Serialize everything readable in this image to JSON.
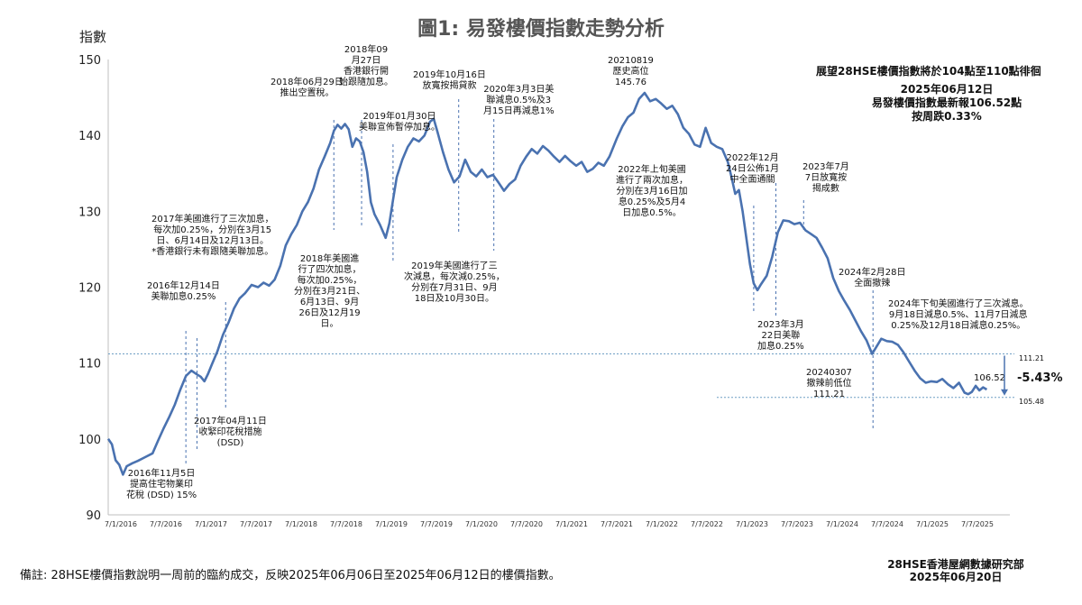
{
  "page": {
    "title": "圖1: 易發樓價指數走勢分析",
    "outlook": "展望28HSE樓價指數將於104點至110點徘徊",
    "latest": "2025年06月12日\n易發樓價指數最新報106.52點\n按周跌0.33%",
    "footer": "備註: 28HSE樓價指數說明一周前的臨約成交，反映2025年06月06日至2025年06月12日的樓價指數。",
    "source": "28HSE香港屋網數據研究部\n2025年06月20日",
    "change_pct": "-5.43%",
    "ref_high_label": "111.21",
    "ref_low_label": "105.48",
    "last_value_label": "106.52"
  },
  "chart_data": {
    "type": "line",
    "title": "圖1: 易發樓價指數走勢分析",
    "xlabel": "",
    "ylabel": "指數",
    "ylim": [
      90,
      150
    ],
    "yticks": [
      90,
      100,
      110,
      120,
      130,
      140,
      150
    ],
    "xticks": [
      "7/1/2016",
      "7/7/2016",
      "7/1/2017",
      "7/7/2017",
      "7/1/2018",
      "7/7/2018",
      "7/1/2019",
      "7/7/2019",
      "7/1/2020",
      "7/7/2020",
      "7/1/2021",
      "7/7/2021",
      "7/1/2022",
      "7/7/2022",
      "7/1/2023",
      "7/7/2023",
      "7/1/2024",
      "7/7/2024",
      "7/1/2025",
      "7/7/2025"
    ],
    "line_color": "#4a72b0",
    "series": [
      {
        "values": [
          [
            2016.0,
            100.0
          ],
          [
            2016.04,
            99.3
          ],
          [
            2016.08,
            97.2
          ],
          [
            2016.12,
            96.6
          ],
          [
            2016.16,
            95.3
          ],
          [
            2016.2,
            96.4
          ],
          [
            2016.26,
            96.8
          ],
          [
            2016.32,
            97.1
          ],
          [
            2016.4,
            97.6
          ],
          [
            2016.48,
            98.1
          ],
          [
            2016.54,
            99.8
          ],
          [
            2016.6,
            101.4
          ],
          [
            2016.66,
            102.9
          ],
          [
            2016.72,
            104.5
          ],
          [
            2016.78,
            106.5
          ],
          [
            2016.84,
            108.3
          ],
          [
            2016.9,
            109.0
          ],
          [
            2016.96,
            108.5
          ],
          [
            2017.0,
            108.2
          ],
          [
            2017.04,
            107.6
          ],
          [
            2017.08,
            108.6
          ],
          [
            2017.12,
            109.8
          ],
          [
            2017.18,
            111.5
          ],
          [
            2017.24,
            113.7
          ],
          [
            2017.3,
            115.3
          ],
          [
            2017.36,
            117.2
          ],
          [
            2017.42,
            118.5
          ],
          [
            2017.48,
            119.2
          ],
          [
            2017.55,
            120.3
          ],
          [
            2017.62,
            120.0
          ],
          [
            2017.68,
            120.6
          ],
          [
            2017.74,
            120.2
          ],
          [
            2017.8,
            121.0
          ],
          [
            2017.86,
            122.8
          ],
          [
            2017.92,
            125.5
          ],
          [
            2017.98,
            127.0
          ],
          [
            2018.04,
            128.2
          ],
          [
            2018.1,
            130.0
          ],
          [
            2018.16,
            131.2
          ],
          [
            2018.22,
            133.0
          ],
          [
            2018.28,
            135.5
          ],
          [
            2018.34,
            137.2
          ],
          [
            2018.4,
            139.0
          ],
          [
            2018.44,
            140.6
          ],
          [
            2018.48,
            141.4
          ],
          [
            2018.52,
            140.9
          ],
          [
            2018.56,
            141.5
          ],
          [
            2018.6,
            140.8
          ],
          [
            2018.64,
            138.5
          ],
          [
            2018.68,
            139.6
          ],
          [
            2018.72,
            139.2
          ],
          [
            2018.76,
            137.8
          ],
          [
            2018.8,
            135.2
          ],
          [
            2018.84,
            131.2
          ],
          [
            2018.88,
            129.6
          ],
          [
            2018.94,
            128.2
          ],
          [
            2019.0,
            126.5
          ],
          [
            2019.04,
            128.4
          ],
          [
            2019.08,
            131.5
          ],
          [
            2019.12,
            134.5
          ],
          [
            2019.18,
            136.8
          ],
          [
            2019.24,
            138.5
          ],
          [
            2019.3,
            139.6
          ],
          [
            2019.36,
            139.2
          ],
          [
            2019.42,
            140.0
          ],
          [
            2019.48,
            141.8
          ],
          [
            2019.52,
            142.2
          ],
          [
            2019.56,
            140.5
          ],
          [
            2019.62,
            137.8
          ],
          [
            2019.68,
            135.5
          ],
          [
            2019.74,
            133.8
          ],
          [
            2019.8,
            134.6
          ],
          [
            2019.86,
            136.8
          ],
          [
            2019.92,
            135.2
          ],
          [
            2019.98,
            134.6
          ],
          [
            2020.04,
            135.5
          ],
          [
            2020.1,
            134.5
          ],
          [
            2020.16,
            134.8
          ],
          [
            2020.22,
            133.8
          ],
          [
            2020.28,
            132.7
          ],
          [
            2020.34,
            133.6
          ],
          [
            2020.4,
            134.2
          ],
          [
            2020.46,
            136.0
          ],
          [
            2020.52,
            137.2
          ],
          [
            2020.58,
            138.2
          ],
          [
            2020.64,
            137.6
          ],
          [
            2020.7,
            138.6
          ],
          [
            2020.76,
            138.0
          ],
          [
            2020.82,
            137.2
          ],
          [
            2020.88,
            136.5
          ],
          [
            2020.94,
            137.3
          ],
          [
            2021.0,
            136.6
          ],
          [
            2021.06,
            136.0
          ],
          [
            2021.12,
            136.5
          ],
          [
            2021.18,
            135.2
          ],
          [
            2021.24,
            135.6
          ],
          [
            2021.3,
            136.4
          ],
          [
            2021.36,
            136.0
          ],
          [
            2021.42,
            137.2
          ],
          [
            2021.5,
            139.6
          ],
          [
            2021.56,
            141.2
          ],
          [
            2021.62,
            142.4
          ],
          [
            2021.68,
            143.0
          ],
          [
            2021.74,
            144.8
          ],
          [
            2021.8,
            145.6
          ],
          [
            2021.86,
            144.5
          ],
          [
            2021.92,
            144.8
          ],
          [
            2021.98,
            144.2
          ],
          [
            2022.04,
            143.5
          ],
          [
            2022.1,
            143.9
          ],
          [
            2022.16,
            142.8
          ],
          [
            2022.22,
            141.0
          ],
          [
            2022.28,
            140.2
          ],
          [
            2022.34,
            138.8
          ],
          [
            2022.4,
            138.5
          ],
          [
            2022.46,
            141.0
          ],
          [
            2022.52,
            139.0
          ],
          [
            2022.58,
            138.5
          ],
          [
            2022.64,
            138.2
          ],
          [
            2022.7,
            136.5
          ],
          [
            2022.74,
            134.5
          ],
          [
            2022.78,
            132.3
          ],
          [
            2022.82,
            132.8
          ],
          [
            2022.86,
            130.0
          ],
          [
            2022.9,
            126.5
          ],
          [
            2022.94,
            123.0
          ],
          [
            2022.98,
            120.5
          ],
          [
            2023.02,
            119.6
          ],
          [
            2023.06,
            120.4
          ],
          [
            2023.12,
            121.5
          ],
          [
            2023.18,
            124.0
          ],
          [
            2023.24,
            127.2
          ],
          [
            2023.3,
            128.8
          ],
          [
            2023.36,
            128.7
          ],
          [
            2023.42,
            128.3
          ],
          [
            2023.48,
            128.5
          ],
          [
            2023.54,
            127.5
          ],
          [
            2023.6,
            127.0
          ],
          [
            2023.66,
            126.5
          ],
          [
            2023.72,
            125.2
          ],
          [
            2023.78,
            123.8
          ],
          [
            2023.84,
            121.2
          ],
          [
            2023.9,
            119.5
          ],
          [
            2023.96,
            118.2
          ],
          [
            2024.02,
            117.0
          ],
          [
            2024.08,
            115.6
          ],
          [
            2024.14,
            114.2
          ],
          [
            2024.2,
            113.0
          ],
          [
            2024.26,
            111.21
          ],
          [
            2024.3,
            112.0
          ],
          [
            2024.36,
            113.2
          ],
          [
            2024.42,
            112.9
          ],
          [
            2024.48,
            112.8
          ],
          [
            2024.54,
            112.4
          ],
          [
            2024.6,
            111.4
          ],
          [
            2024.66,
            110.2
          ],
          [
            2024.72,
            109.0
          ],
          [
            2024.78,
            108.0
          ],
          [
            2024.84,
            107.4
          ],
          [
            2024.9,
            107.6
          ],
          [
            2024.96,
            107.5
          ],
          [
            2025.02,
            107.9
          ],
          [
            2025.08,
            107.2
          ],
          [
            2025.14,
            106.7
          ],
          [
            2025.2,
            107.4
          ],
          [
            2025.26,
            106.1
          ],
          [
            2025.3,
            105.9
          ],
          [
            2025.34,
            106.2
          ],
          [
            2025.38,
            107.0
          ],
          [
            2025.42,
            106.4
          ],
          [
            2025.46,
            106.8
          ],
          [
            2025.5,
            106.52
          ]
        ]
      }
    ],
    "reference_lines": [
      {
        "value": 111.21,
        "label": "111.21"
      },
      {
        "value": 105.48,
        "label": "105.48"
      }
    ],
    "annotations": [
      {
        "text": "2016年11月5日\n提高住宅物業印\n花稅 (DSD) 15%",
        "date": 2016.84
      },
      {
        "text": "2016年12月14日\n美聯加息0.25%",
        "date": 2016.96
      },
      {
        "text": "2017年04月11日\n收緊印花稅措施\n(DSD)",
        "date": 2017.27
      },
      {
        "text": "2017年美國進行了三次加息，\n每次加0.25%，分別在3月15\n日、6月14日及12月13日。\n*香港銀行未有跟隨美聯加息。",
        "date": 2017.27
      },
      {
        "text": "2018年美國進\n行了四次加息，\n每次加0.25%，\n分別在3月21日、\n6月13日、9月\n26日及12月19\n日。",
        "date": 2018.44
      },
      {
        "text": "2018年06月29日\n推出空置稅。",
        "date": 2018.49
      },
      {
        "text": "2018年09\n月27日\n香港銀行開\n始跟隨加息。",
        "date": 2018.74
      },
      {
        "text": "2019年01月30日\n美聯宣佈暫停加息。",
        "date": 2019.08
      },
      {
        "text": "2019年美國進行了三\n次減息，每次減0.25%，\n分別在7月31日、9月\n18日及10月30日。",
        "date": 2019.0
      },
      {
        "text": "2019年10月16日\n放寬按揭貸款",
        "date": 2019.79
      },
      {
        "text": "2020年3月3日美\n聯減息0.5%及3\n月15日再減息1%",
        "date": 2020.17
      },
      {
        "text": "20210819\n歷史高位\n145.76",
        "date": 2021.63
      },
      {
        "text": "2022年上旬美國\n進行了兩次加息，\n分別在3月16日加\n息0.25%及5月4\n日加息0.5%。",
        "date": 2022.2
      },
      {
        "text": "2022年12月\n24日公佈1月\n中全面通關",
        "date": 2022.98
      },
      {
        "text": "2023年3月\n22日美聯\n加息0.25%",
        "date": 2023.22
      },
      {
        "text": "2023年7月\n7日放寬按\n揭成數",
        "date": 2023.52
      },
      {
        "text": "2024年2月28日\n全面撤辣",
        "date": 2024.16
      },
      {
        "text": "20240307\n撤辣前低位\n111.21",
        "date": 2024.18
      },
      {
        "text": "2024年下旬美國進行了三次減息。\n9月18日減息0.5%、11月7日減息\n0.25%及12月18日減息0.25%。",
        "date": 2024.7
      }
    ]
  }
}
